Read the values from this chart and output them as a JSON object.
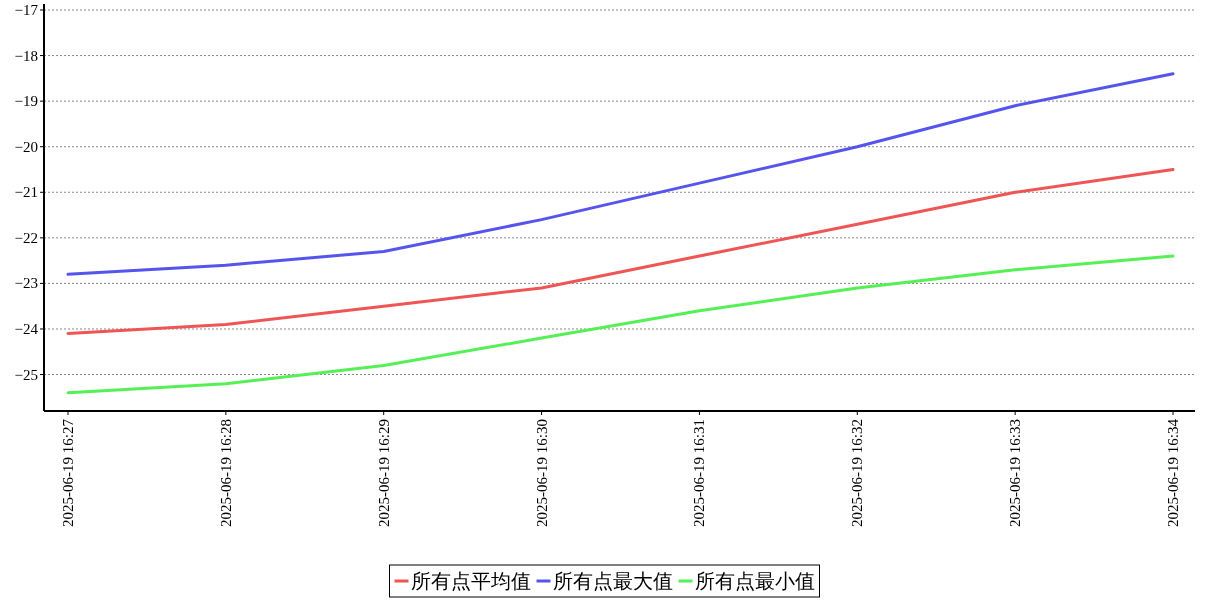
{
  "chart_data": {
    "type": "line",
    "categories": [
      "2025-06-19 16:27",
      "2025-06-19 16:28",
      "2025-06-19 16:29",
      "2025-06-19 16:30",
      "2025-06-19 16:31",
      "2025-06-19 16:32",
      "2025-06-19 16:33",
      "2025-06-19 16:34"
    ],
    "series": [
      {
        "name": "所有点平均值",
        "color": "#f05555",
        "values": [
          -24.1,
          -23.9,
          -23.5,
          -23.1,
          -22.4,
          -21.7,
          -21.0,
          -20.5
        ]
      },
      {
        "name": "所有点最大值",
        "color": "#5555ee",
        "values": [
          -22.8,
          -22.6,
          -22.3,
          -21.6,
          -20.8,
          -20.0,
          -19.1,
          -18.4
        ]
      },
      {
        "name": "所有点最小值",
        "color": "#55f055",
        "values": [
          -25.4,
          -25.2,
          -24.8,
          -24.2,
          -23.6,
          -23.1,
          -22.7,
          -22.4
        ]
      }
    ],
    "ylim": [
      -25.8,
      -17
    ],
    "yticks": [
      -25,
      -24,
      -23,
      -22,
      -21,
      -20,
      -19,
      -18,
      -17
    ],
    "grid": "y",
    "legend": "bottom",
    "marker": "none",
    "line_style": "solid"
  }
}
